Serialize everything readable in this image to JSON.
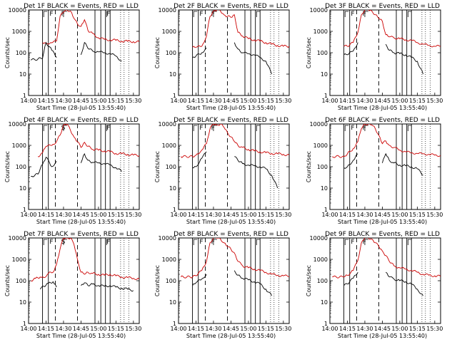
{
  "y_axis_label": "Counts/sec",
  "x_axis_label": "Start Time (28-Jul-05 13:55:40)",
  "series_colors": {
    "events": "#000000",
    "lld": "#cc0000"
  },
  "panels": [
    {
      "title": "Det 1F BLACK = Events, RED = LLD",
      "markers": [
        "F",
        "F",
        "F"
      ]
    },
    {
      "title": "Det 2F BLACK = Events, RED = LLD",
      "markers": [
        "F",
        "F"
      ]
    },
    {
      "title": "Det 3F BLACK = Events, RED = LLD",
      "markers": [
        "F",
        "F"
      ]
    },
    {
      "title": "Det 4F BLACK = Events, RED = LLD",
      "markers": [
        "F",
        "S",
        "F"
      ]
    },
    {
      "title": "Det 5F BLACK = Events, RED = LLD",
      "markers": [
        "F",
        "F"
      ]
    },
    {
      "title": "Det 6F BLACK = Events, RED = LLD",
      "markers": [
        "F",
        "F"
      ]
    },
    {
      "title": "Det 7F BLACK = Events, RED = LLD",
      "markers": [
        "F",
        "S",
        "F"
      ]
    },
    {
      "title": "Det 8F BLACK = Events, RED = LLD",
      "markers": [
        "F",
        "F"
      ]
    },
    {
      "title": "Det 9F BLACK = Events, RED = LLD",
      "markers": [
        "F",
        "F"
      ]
    }
  ],
  "chart_data": [
    {
      "type": "line",
      "title": "Det 1F BLACK = Events, RED = LLD",
      "xlabel": "Start Time (28-Jul-05 13:55:40)",
      "ylabel": "Counts/sec",
      "y_scale": "log",
      "ylim": [
        1,
        10000
      ],
      "x_ticks": [
        "14:00",
        "14:15",
        "14:30",
        "14:45",
        "15:00",
        "15:15",
        "15:30"
      ],
      "y_ticks": [
        "1",
        "10",
        "100",
        "1000",
        "10000"
      ],
      "x": [
        "14:02",
        "14:12",
        "14:15",
        "14:20",
        "14:24",
        "14:27",
        "14:30",
        "14:33",
        "14:36",
        "14:39",
        "14:42",
        "14:45",
        "14:48",
        "14:51",
        "14:55",
        "15:00",
        "15:05",
        "15:10",
        "15:15",
        "15:20",
        "15:25",
        "15:30",
        "15:35"
      ],
      "series": [
        {
          "name": "LLD",
          "values": [
            null,
            300,
            280,
            290,
            350,
            5000,
            8000,
            10000,
            9000,
            4000,
            2200,
            1700,
            3500,
            1100,
            800,
            500,
            420,
            400,
            380,
            350,
            340,
            330,
            320
          ]
        },
        {
          "name": "Events",
          "values": [
            45,
            55,
            300,
            130,
            60,
            null,
            null,
            null,
            null,
            null,
            null,
            80,
            300,
            160,
            120,
            110,
            100,
            90,
            70,
            40,
            null,
            null,
            null
          ]
        }
      ]
    },
    {
      "type": "line",
      "title": "Det 2F BLACK = Events, RED = LLD",
      "xlabel": "Start Time (28-Jul-05 13:55:40)",
      "ylabel": "Counts/sec",
      "y_scale": "log",
      "ylim": [
        1,
        10000
      ],
      "x_ticks": [
        "14:00",
        "14:15",
        "14:30",
        "14:45",
        "15:00",
        "15:15",
        "15:30"
      ],
      "y_ticks": [
        "1",
        "10",
        "100",
        "1000",
        "10000"
      ],
      "x": [
        "14:02",
        "14:12",
        "14:15",
        "14:20",
        "14:24",
        "14:27",
        "14:30",
        "14:33",
        "14:36",
        "14:39",
        "14:42",
        "14:45",
        "14:48",
        "14:51",
        "14:55",
        "15:00",
        "15:05",
        "15:10",
        "15:15",
        "15:20",
        "15:25",
        "15:30",
        "15:35"
      ],
      "series": [
        {
          "name": "LLD",
          "values": [
            null,
            180,
            180,
            200,
            600,
            5000,
            9000,
            10000,
            9000,
            6000,
            5000,
            4500,
            6000,
            900,
            600,
            450,
            400,
            350,
            300,
            250,
            220,
            200,
            200
          ]
        },
        {
          "name": "Events",
          "values": [
            null,
            60,
            70,
            100,
            170,
            null,
            null,
            null,
            null,
            null,
            null,
            null,
            300,
            150,
            100,
            90,
            80,
            60,
            40,
            10,
            null,
            null,
            null
          ]
        }
      ]
    },
    {
      "type": "line",
      "title": "Det 3F BLACK = Events, RED = LLD",
      "xlabel": "Start Time (28-Jul-05 13:55:40)",
      "ylabel": "Counts/sec",
      "y_scale": "log",
      "ylim": [
        1,
        10000
      ],
      "x_ticks": [
        "14:00",
        "14:15",
        "14:30",
        "14:45",
        "15:00",
        "15:15",
        "15:30"
      ],
      "y_ticks": [
        "1",
        "10",
        "100",
        "1000",
        "10000"
      ],
      "x": [
        "14:02",
        "14:12",
        "14:15",
        "14:20",
        "14:24",
        "14:27",
        "14:30",
        "14:33",
        "14:36",
        "14:39",
        "14:42",
        "14:45",
        "14:48",
        "14:51",
        "14:55",
        "15:00",
        "15:05",
        "15:10",
        "15:15",
        "15:20",
        "15:25",
        "15:30",
        "15:35"
      ],
      "series": [
        {
          "name": "LLD",
          "values": [
            null,
            200,
            200,
            300,
            900,
            6000,
            10000,
            10000,
            9000,
            6000,
            4000,
            3000,
            700,
            550,
            500,
            450,
            400,
            380,
            300,
            250,
            220,
            200,
            200
          ]
        },
        {
          "name": "Events",
          "values": [
            null,
            80,
            80,
            120,
            300,
            null,
            null,
            null,
            null,
            null,
            null,
            null,
            250,
            130,
            100,
            90,
            80,
            60,
            40,
            10,
            null,
            null,
            null
          ]
        }
      ]
    },
    {
      "type": "line",
      "title": "Det 4F BLACK = Events, RED = LLD",
      "xlabel": "Start Time (28-Jul-05 13:55:40)",
      "ylabel": "Counts/sec",
      "y_scale": "log",
      "ylim": [
        1,
        10000
      ],
      "x_ticks": [
        "14:00",
        "14:15",
        "14:30",
        "14:45",
        "15:00",
        "15:15",
        "15:30"
      ],
      "y_ticks": [
        "1",
        "10",
        "100",
        "1000",
        "10000"
      ],
      "x": [
        "14:02",
        "14:08",
        "14:12",
        "14:15",
        "14:20",
        "14:24",
        "14:27",
        "14:30",
        "14:33",
        "14:36",
        "14:39",
        "14:42",
        "14:45",
        "14:48",
        "14:51",
        "14:55",
        "15:00",
        "15:05",
        "15:10",
        "15:15",
        "15:20",
        "15:25",
        "15:30",
        "15:35"
      ],
      "series": [
        {
          "name": "LLD",
          "values": [
            null,
            300,
            450,
            900,
            1000,
            1500,
            3000,
            9000,
            10000,
            5000,
            2500,
            1500,
            800,
            1400,
            900,
            650,
            600,
            550,
            500,
            420,
            400,
            380,
            350,
            330
          ]
        },
        {
          "name": "Events",
          "values": [
            35,
            45,
            130,
            280,
            100,
            180,
            null,
            null,
            null,
            null,
            null,
            null,
            150,
            400,
            200,
            160,
            150,
            140,
            120,
            90,
            60,
            null,
            null,
            null
          ]
        }
      ]
    },
    {
      "type": "line",
      "title": "Det 5F BLACK = Events, RED = LLD",
      "xlabel": "Start Time (28-Jul-05 13:55:40)",
      "ylabel": "Counts/sec",
      "y_scale": "log",
      "ylim": [
        1,
        10000
      ],
      "x_ticks": [
        "14:00",
        "14:15",
        "14:30",
        "14:45",
        "15:00",
        "15:15",
        "15:30"
      ],
      "y_ticks": [
        "1",
        "10",
        "100",
        "1000",
        "10000"
      ],
      "x": [
        "14:02",
        "14:12",
        "14:15",
        "14:20",
        "14:24",
        "14:27",
        "14:30",
        "14:33",
        "14:36",
        "14:39",
        "14:42",
        "14:45",
        "14:48",
        "14:51",
        "14:55",
        "15:00",
        "15:05",
        "15:10",
        "15:15",
        "15:20",
        "15:25",
        "15:30",
        "15:35"
      ],
      "series": [
        {
          "name": "LLD",
          "values": [
            300,
            300,
            350,
            600,
            1200,
            6000,
            10000,
            9000,
            10000,
            7000,
            4000,
            2500,
            1500,
            1000,
            800,
            650,
            550,
            500,
            450,
            420,
            400,
            380,
            350
          ]
        },
        {
          "name": "Events",
          "values": [
            null,
            90,
            100,
            250,
            500,
            null,
            null,
            null,
            null,
            null,
            null,
            null,
            300,
            200,
            140,
            120,
            110,
            100,
            80,
            40,
            10,
            null,
            null
          ]
        }
      ]
    },
    {
      "type": "line",
      "title": "Det 6F BLACK = Events, RED = LLD",
      "xlabel": "Start Time (28-Jul-05 13:55:40)",
      "ylabel": "Counts/sec",
      "y_scale": "log",
      "ylim": [
        1,
        10000
      ],
      "x_ticks": [
        "14:00",
        "14:15",
        "14:30",
        "14:45",
        "15:00",
        "15:15",
        "15:30"
      ],
      "y_ticks": [
        "1",
        "10",
        "100",
        "1000",
        "10000"
      ],
      "x": [
        "14:02",
        "14:12",
        "14:15",
        "14:20",
        "14:24",
        "14:27",
        "14:30",
        "14:33",
        "14:36",
        "14:39",
        "14:42",
        "14:45",
        "14:48",
        "14:51",
        "14:55",
        "15:00",
        "15:05",
        "15:10",
        "15:15",
        "15:20",
        "15:25",
        "15:30",
        "15:35"
      ],
      "series": [
        {
          "name": "LLD",
          "values": [
            300,
            300,
            400,
            700,
            1500,
            6000,
            10000,
            10000,
            9000,
            6000,
            3000,
            1200,
            1600,
            1000,
            800,
            600,
            500,
            450,
            420,
            400,
            380,
            350,
            330
          ]
        },
        {
          "name": "Events",
          "values": [
            null,
            90,
            100,
            200,
            400,
            null,
            null,
            null,
            null,
            null,
            null,
            150,
            400,
            200,
            150,
            120,
            110,
            100,
            80,
            40,
            null,
            null,
            null
          ]
        }
      ]
    },
    {
      "type": "line",
      "title": "Det 7F BLACK = Events, RED = LLD",
      "xlabel": "Start Time (28-Jul-05 13:55:40)",
      "ylabel": "Counts/sec",
      "y_scale": "log",
      "ylim": [
        1,
        10000
      ],
      "x_ticks": [
        "14:00",
        "14:15",
        "14:30",
        "14:45",
        "15:00",
        "15:15",
        "15:30"
      ],
      "y_ticks": [
        "1",
        "10",
        "100",
        "1000",
        "10000"
      ],
      "x": [
        "14:02",
        "14:06",
        "14:10",
        "14:13",
        "14:17",
        "14:21",
        "14:24",
        "14:27",
        "14:30",
        "14:33",
        "14:36",
        "14:39",
        "14:42",
        "14:45",
        "14:48",
        "14:51",
        "14:55",
        "15:00",
        "15:05",
        "15:10",
        "15:15",
        "15:20",
        "15:25",
        "15:30",
        "15:35"
      ],
      "series": [
        {
          "name": "LLD",
          "values": [
            100,
            130,
            150,
            140,
            220,
            250,
            600,
            3000,
            10000,
            10000,
            10000,
            5000,
            1000,
            250,
            200,
            250,
            220,
            200,
            180,
            200,
            170,
            150,
            140,
            130,
            120
          ]
        },
        {
          "name": "Events",
          "values": [
            null,
            null,
            40,
            55,
            75,
            90,
            50,
            null,
            null,
            null,
            null,
            null,
            null,
            60,
            80,
            60,
            70,
            60,
            55,
            60,
            50,
            45,
            40,
            35,
            null
          ]
        }
      ]
    },
    {
      "type": "line",
      "title": "Det 8F BLACK = Events, RED = LLD",
      "xlabel": "Start Time (28-Jul-05 13:55:40)",
      "ylabel": "Counts/sec",
      "y_scale": "log",
      "ylim": [
        1,
        10000
      ],
      "x_ticks": [
        "14:00",
        "14:15",
        "14:30",
        "14:45",
        "15:00",
        "15:15",
        "15:30"
      ],
      "y_ticks": [
        "1",
        "10",
        "100",
        "1000",
        "10000"
      ],
      "x": [
        "14:02",
        "14:12",
        "14:15",
        "14:20",
        "14:24",
        "14:27",
        "14:30",
        "14:33",
        "14:36",
        "14:39",
        "14:42",
        "14:45",
        "14:48",
        "14:51",
        "14:55",
        "15:00",
        "15:05",
        "15:10",
        "15:15",
        "15:20",
        "15:25",
        "15:30",
        "15:35"
      ],
      "series": [
        {
          "name": "LLD",
          "values": [
            150,
            150,
            170,
            300,
            800,
            6000,
            10000,
            10000,
            9000,
            6000,
            4000,
            3000,
            2000,
            800,
            500,
            400,
            350,
            300,
            250,
            200,
            180,
            170,
            160
          ]
        },
        {
          "name": "Events",
          "values": [
            null,
            60,
            80,
            120,
            200,
            null,
            null,
            null,
            null,
            null,
            null,
            null,
            300,
            180,
            130,
            110,
            90,
            70,
            40,
            20,
            null,
            null,
            null
          ]
        }
      ]
    },
    {
      "type": "line",
      "title": "Det 9F BLACK = Events, RED = LLD",
      "xlabel": "Start Time (28-Jul-05 13:55:40)",
      "ylabel": "Counts/sec",
      "y_scale": "log",
      "ylim": [
        1,
        10000
      ],
      "x_ticks": [
        "14:00",
        "14:15",
        "14:30",
        "14:45",
        "15:00",
        "15:15",
        "15:30"
      ],
      "y_ticks": [
        "1",
        "10",
        "100",
        "1000",
        "10000"
      ],
      "x": [
        "14:02",
        "14:12",
        "14:15",
        "14:20",
        "14:24",
        "14:27",
        "14:30",
        "14:33",
        "14:36",
        "14:39",
        "14:42",
        "14:45",
        "14:48",
        "14:51",
        "14:55",
        "15:00",
        "15:05",
        "15:10",
        "15:15",
        "15:20",
        "15:25",
        "15:30",
        "15:35"
      ],
      "series": [
        {
          "name": "LLD",
          "values": [
            150,
            150,
            180,
            300,
            900,
            6000,
            10000,
            10000,
            9000,
            6000,
            4000,
            2500,
            1500,
            800,
            500,
            400,
            350,
            300,
            250,
            200,
            180,
            170,
            160
          ]
        },
        {
          "name": "Events",
          "values": [
            null,
            60,
            70,
            130,
            250,
            null,
            null,
            null,
            null,
            null,
            null,
            null,
            250,
            150,
            120,
            100,
            90,
            70,
            40,
            20,
            null,
            null,
            null
          ]
        }
      ]
    }
  ]
}
